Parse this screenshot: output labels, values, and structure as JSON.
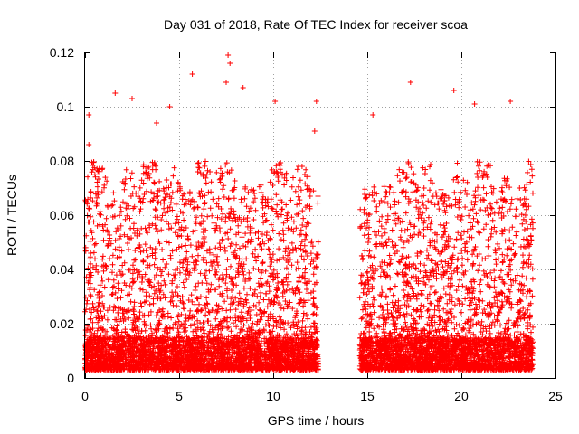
{
  "chart_data": {
    "type": "scatter",
    "title": "Day 031 of 2018, Rate Of TEC Index for receiver scoa",
    "xlabel": "GPS time / hours",
    "ylabel": "ROTI / TECUs",
    "xlim": [
      0,
      25
    ],
    "ylim": [
      0,
      0.12
    ],
    "xticks": [
      0,
      5,
      10,
      15,
      20,
      25
    ],
    "xtick_labels": [
      "0",
      "5",
      "10",
      "15",
      "20",
      "25"
    ],
    "yticks": [
      0,
      0.02,
      0.04,
      0.06,
      0.08,
      0.1,
      0.12
    ],
    "ytick_labels": [
      "0",
      "0.02",
      "0.04",
      "0.06",
      "0.08",
      "0.1",
      "0.12"
    ],
    "grid": true,
    "marker": "+",
    "marker_color": "#ff0000",
    "series": [
      {
        "name": "ROTI",
        "segments": [
          {
            "x_start": 0.0,
            "x_end": 12.4,
            "typical_min": 0.003,
            "typical_max": 0.08
          },
          {
            "x_start": 14.6,
            "x_end": 23.8,
            "typical_min": 0.003,
            "typical_max": 0.08
          }
        ],
        "notable_points": [
          {
            "x": 7.6,
            "y": 0.119
          },
          {
            "x": 7.7,
            "y": 0.116
          },
          {
            "x": 5.7,
            "y": 0.112
          },
          {
            "x": 7.5,
            "y": 0.109
          },
          {
            "x": 17.3,
            "y": 0.109
          },
          {
            "x": 8.4,
            "y": 0.107
          },
          {
            "x": 19.6,
            "y": 0.106
          },
          {
            "x": 1.6,
            "y": 0.105
          },
          {
            "x": 2.5,
            "y": 0.103
          },
          {
            "x": 10.1,
            "y": 0.102
          },
          {
            "x": 12.3,
            "y": 0.102
          },
          {
            "x": 22.6,
            "y": 0.102
          },
          {
            "x": 20.7,
            "y": 0.101
          },
          {
            "x": 4.5,
            "y": 0.1
          },
          {
            "x": 0.2,
            "y": 0.097
          },
          {
            "x": 15.3,
            "y": 0.097
          },
          {
            "x": 3.8,
            "y": 0.094
          },
          {
            "x": 12.2,
            "y": 0.091
          },
          {
            "x": 0.2,
            "y": 0.086
          }
        ]
      }
    ]
  }
}
